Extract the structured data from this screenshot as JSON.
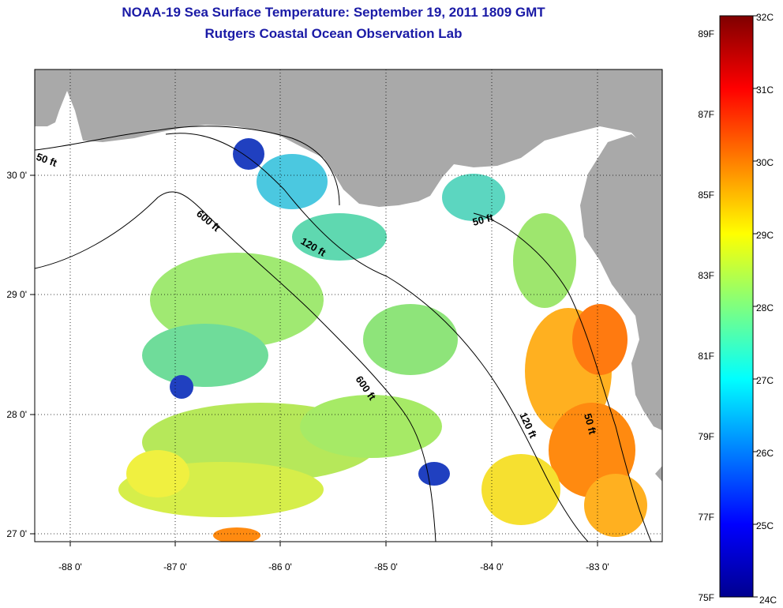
{
  "title": "NOAA-19 Sea Surface Temperature:  September 19, 2011 1809 GMT",
  "subtitle": "Rutgers Coastal Ocean Observation Lab",
  "map": {
    "lon_ticks": [
      "-88 0'",
      "-87 0'",
      "-86 0'",
      "-85 0'",
      "-84 0'",
      "-83 0'"
    ],
    "lat_ticks": [
      "30 0'",
      "29 0'",
      "28 0'",
      "27 0'"
    ],
    "contour_labels": [
      "50 ft",
      "600 ft",
      "120 ft",
      "50 ft",
      "600 ft",
      "120 ft",
      "50 ft"
    ],
    "land_color": "#a9a9a9",
    "cloud_color": "#ffffff"
  },
  "colorbar": {
    "fahrenheit_labels": [
      "89F",
      "87F",
      "85F",
      "83F",
      "81F",
      "79F",
      "77F",
      "75F"
    ],
    "celsius_labels": [
      "32C",
      "31C",
      "30C",
      "29C",
      "28C",
      "27C",
      "26C",
      "25C",
      "24C"
    ],
    "colors": [
      "#7f0000",
      "#ff0000",
      "#ff7f00",
      "#ffff00",
      "#7fff7f",
      "#00ffff",
      "#007fff",
      "#0000ff",
      "#00008f"
    ]
  }
}
